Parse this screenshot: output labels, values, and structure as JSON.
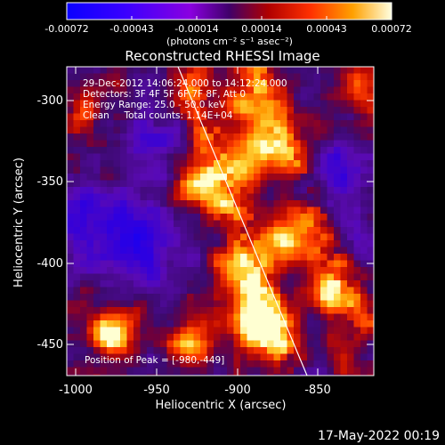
{
  "colorbar": {
    "tick_labels": [
      "-0.00072",
      "-0.00043",
      "-0.00014",
      "0.00014",
      "0.00043",
      "0.00072"
    ],
    "units": "(photons cm⁻² s⁻¹ asec⁻²)"
  },
  "plot": {
    "title": "Reconstructed RHESSI Image",
    "info_lines": [
      "29-Dec-2012 14:06:24.000 to 14:12:24.000",
      "Detectors: 3F 4F 5F 6F 7F 8F, Att 0",
      "Energy Range: 25.0 - 50.0 keV",
      "Clean     Total counts: 1.14E+04"
    ],
    "peak_label": "Position of Peak = [-980,-449]",
    "x_axis": {
      "label": "Heliocentric X (arcsec)",
      "ticks": [
        "-1000",
        "-950",
        "-900",
        "-850"
      ]
    },
    "y_axis": {
      "label": "Heliocentric Y (arcsec)",
      "ticks": [
        "-300",
        "-350",
        "-400",
        "-450"
      ]
    }
  },
  "footer": {
    "timestamp": "17-May-2022 00:19"
  }
}
